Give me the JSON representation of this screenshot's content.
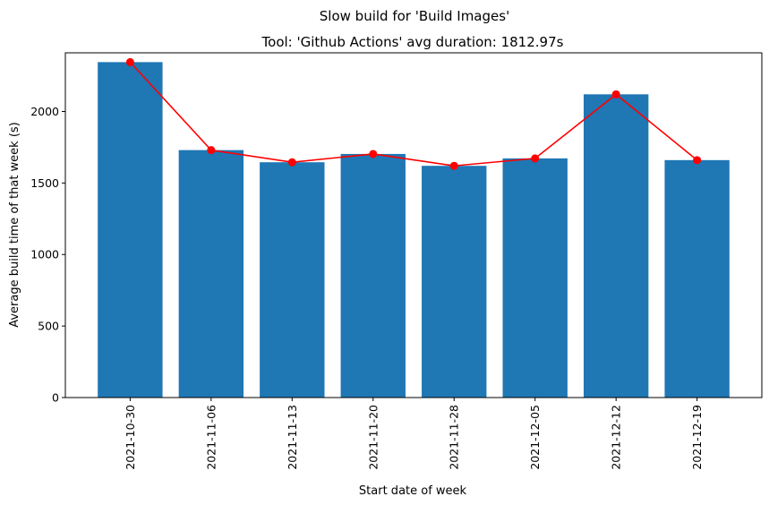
{
  "chart_data": {
    "type": "bar",
    "suptitle": "Slow build for 'Build Images'",
    "title": "Tool: 'Github Actions' avg duration: 1812.97s",
    "xlabel": "Start date of week",
    "ylabel": "Average build time of that week (s)",
    "categories": [
      "2021-10-30",
      "2021-11-06",
      "2021-11-13",
      "2021-11-20",
      "2021-11-28",
      "2021-12-05",
      "2021-12-12",
      "2021-12-19"
    ],
    "values": [
      2345,
      1730,
      1645,
      1703,
      1620,
      1672,
      2120,
      1660
    ],
    "line_overlay": {
      "values": [
        2345,
        1730,
        1645,
        1703,
        1620,
        1672,
        2120,
        1660
      ],
      "marker": "circle"
    },
    "ylim": [
      0,
      2410
    ],
    "yticks": [
      0,
      500,
      1000,
      1500,
      2000
    ],
    "grid": false,
    "legend": "none",
    "colors": {
      "bar": "#1f77b4",
      "line": "#ff0000",
      "marker": "#ff0000"
    }
  }
}
